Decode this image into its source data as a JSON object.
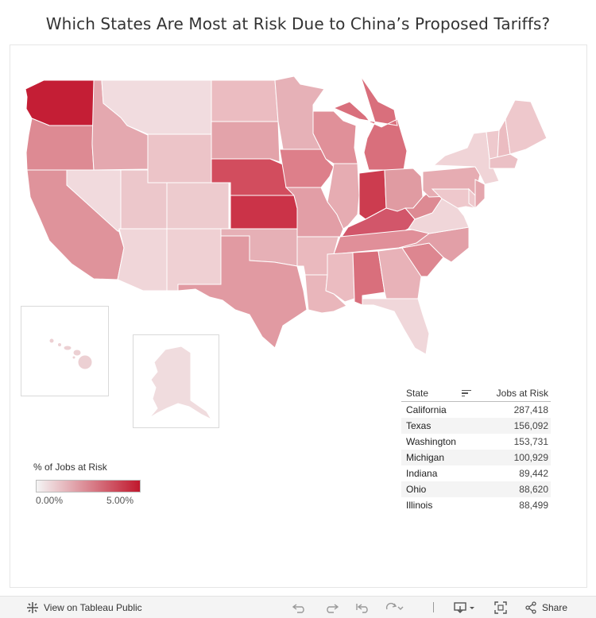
{
  "title": "Which States Are Most at Risk Due to China’s Proposed Tariffs?",
  "legend": {
    "title": "% of Jobs at Risk",
    "min": "0.00%",
    "max": "5.00%",
    "color_low": "#f4f4f4",
    "color_high": "#c0182d"
  },
  "table": {
    "col_state": "State",
    "col_jobs": "Jobs at Risk",
    "rows": [
      {
        "state": "California",
        "jobs": "287,418"
      },
      {
        "state": "Texas",
        "jobs": "156,092"
      },
      {
        "state": "Washington",
        "jobs": "153,731"
      },
      {
        "state": "Michigan",
        "jobs": "100,929"
      },
      {
        "state": "Indiana",
        "jobs": "89,442"
      },
      {
        "state": "Ohio",
        "jobs": "88,620"
      },
      {
        "state": "Illinois",
        "jobs": "88,499"
      }
    ]
  },
  "toolbar": {
    "view_label": "View on Tableau Public",
    "share_label": "Share",
    "icons": [
      "tableau-logo-icon",
      "undo-icon",
      "redo-icon",
      "revert-icon",
      "refresh-icon",
      "download-icon",
      "fullscreen-icon",
      "share-icon"
    ]
  },
  "state_shades": {
    "WA": "#c41e35",
    "OR": "#dd8a93",
    "CA": "#df939b",
    "ID": "#e4a8af",
    "NV": "#f1dadd",
    "MT": "#f1dcdf",
    "WY": "#ecc4c8",
    "UT": "#ecc7cb",
    "AZ": "#f0d6d9",
    "CO": "#edcbce",
    "NM": "#efd0d3",
    "ND": "#ebbcc1",
    "SD": "#e3a3aa",
    "NE": "#d24d5e",
    "KS": "#cb3348",
    "OK": "#e6b0b6",
    "TX": "#e19aa2",
    "MN": "#e6b1b7",
    "IA": "#dd7f8a",
    "MO": "#e29ea6",
    "AR": "#eab9be",
    "LA": "#e9b6bb",
    "WI": "#e09099",
    "IL": "#e6acb2",
    "MI": "#d96f7c",
    "IN": "#cc3c4f",
    "OH": "#e09ba2",
    "KY": "#d2566a",
    "TN": "#e08f99",
    "MS": "#ebbcc1",
    "AL": "#d96f7c",
    "GA": "#e8b2b8",
    "FL": "#f0d7da",
    "SC": "#dd8690",
    "NC": "#e29fa7",
    "VA": "#f0d6d9",
    "WV": "#dd8a93",
    "PA": "#e6acb2",
    "NY": "#f0d4d7",
    "ME": "#eec8cc",
    "NH": "#ebbcc1",
    "VT": "#eec9cd",
    "MA": "#ebc0c5",
    "NJ": "#e4a6ad",
    "MD": "#eec8cc",
    "DE": "#eec8cc",
    "HI": "#ecd0d3",
    "AK": "#f0dcde"
  }
}
